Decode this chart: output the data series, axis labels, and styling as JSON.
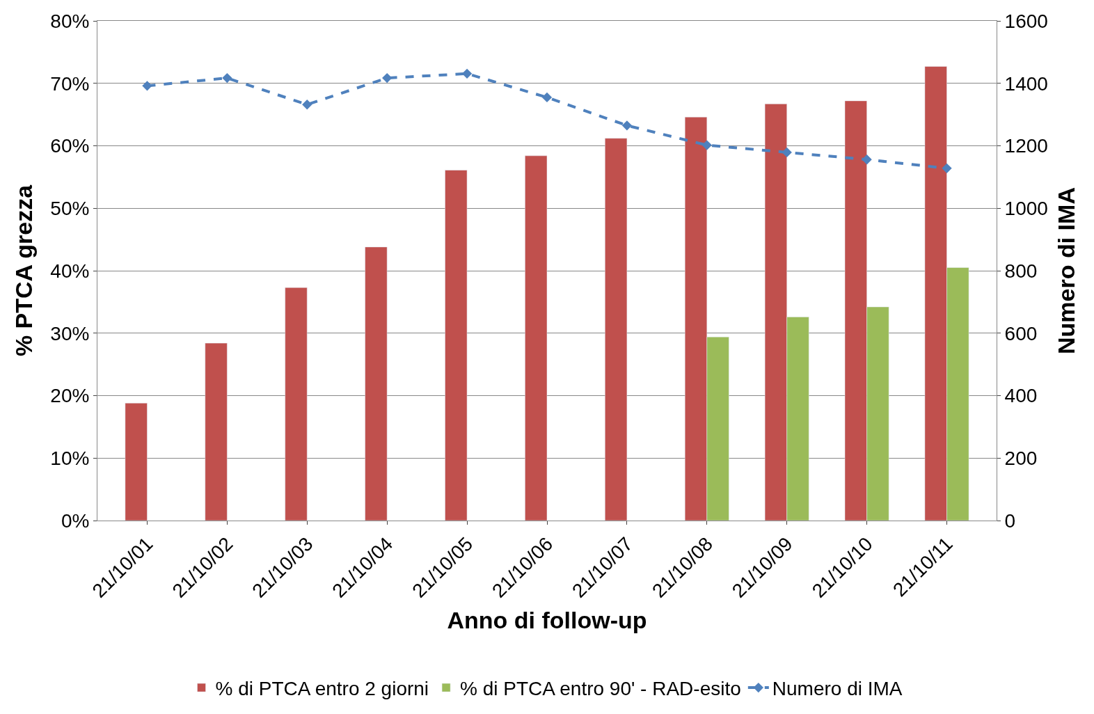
{
  "chart_data": {
    "type": "bar",
    "xlabel": "Anno di follow-up",
    "ylabel": "% PTCA grezza",
    "y2label": "Numero di IMA",
    "categories": [
      "21/10/01",
      "21/10/02",
      "21/10/03",
      "21/10/04",
      "21/10/05",
      "21/10/06",
      "21/10/07",
      "21/10/08",
      "21/10/09",
      "21/10/10",
      "21/10/11"
    ],
    "series": [
      {
        "name": "% di PTCA entro 2 giorni",
        "color": "#c0504d",
        "values": [
          18.8,
          28.4,
          37.3,
          43.8,
          56.1,
          58.4,
          61.2,
          64.6,
          66.7,
          67.2,
          72.7
        ]
      },
      {
        "name": "% di PTCA entro 90' - RAD-esito",
        "color": "#9bbb59",
        "values": [
          null,
          null,
          null,
          null,
          null,
          null,
          null,
          29.4,
          32.6,
          34.2,
          40.5
        ]
      },
      {
        "name": "Numero di IMA",
        "type": "line",
        "axis": "y2",
        "color": "#4f81bd",
        "marker": "diamond",
        "line_style": "dashed",
        "values": [
          1392,
          1417,
          1332,
          1417,
          1431,
          1355,
          1265,
          1202,
          1179,
          1156,
          1128
        ]
      }
    ],
    "ylim": [
      0,
      80
    ],
    "yticks": [
      {
        "value": 0,
        "label": "0%"
      },
      {
        "value": 10,
        "label": "10%"
      },
      {
        "value": 20,
        "label": "20%"
      },
      {
        "value": 30,
        "label": "30%"
      },
      {
        "value": 40,
        "label": "40%"
      },
      {
        "value": 50,
        "label": "50%"
      },
      {
        "value": 60,
        "label": "60%"
      },
      {
        "value": 70,
        "label": "70%"
      },
      {
        "value": 80,
        "label": "80%"
      }
    ],
    "y2lim": [
      0,
      1600
    ],
    "y2ticks": [
      0,
      200,
      400,
      600,
      800,
      1000,
      1200,
      1400,
      1600
    ],
    "grid": "y",
    "legend": "bottom"
  }
}
